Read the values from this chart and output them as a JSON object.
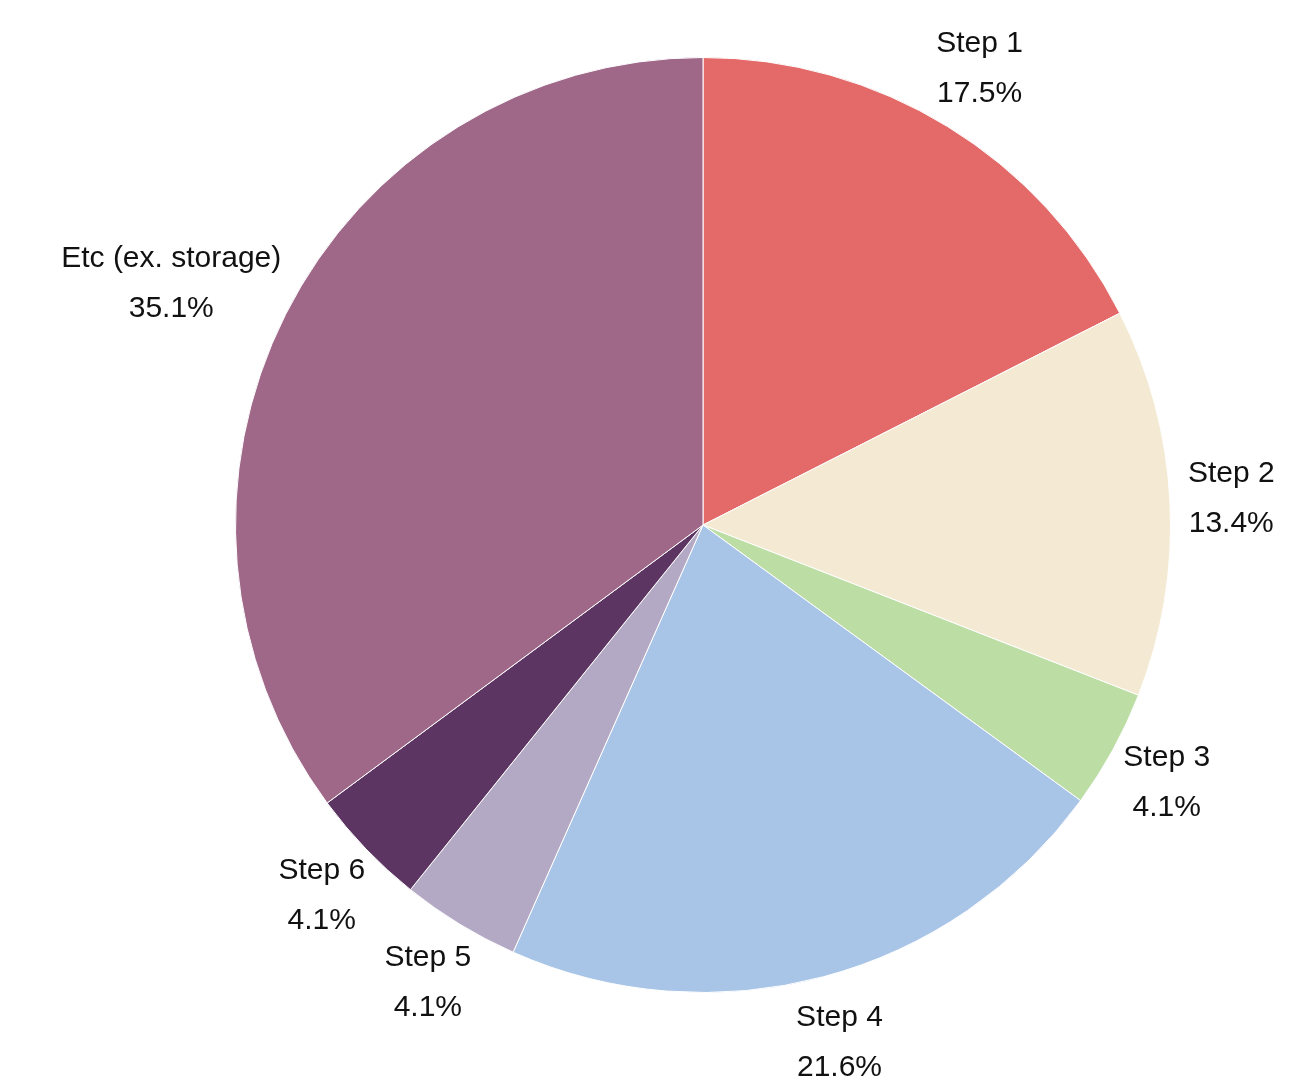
{
  "chart_data": {
    "type": "pie",
    "categories": [
      "Step 1",
      "Step 2",
      "Step 3",
      "Step 4",
      "Step 5",
      "Step 6",
      "Etc (ex. storage)"
    ],
    "values": [
      17.5,
      13.4,
      4.1,
      21.6,
      4.1,
      4.1,
      35.1
    ],
    "value_labels": [
      "17.5%",
      "13.4%",
      "4.1%",
      "21.6%",
      "4.1%",
      "4.1%",
      "35.1%"
    ],
    "colors": [
      "#e46a6a",
      "#f4ead3",
      "#bcdda4",
      "#a8c4e6",
      "#b3a9c4",
      "#5c3562",
      "#9f6889"
    ],
    "legend": false
  }
}
